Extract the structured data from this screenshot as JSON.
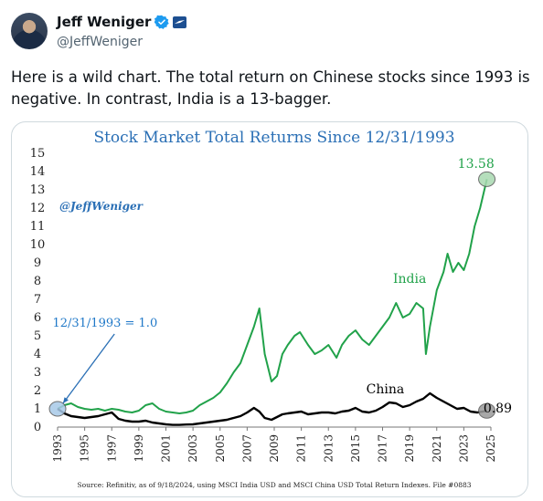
{
  "tweet": {
    "author_name": "Jeff Weniger",
    "author_handle": "@JeffWeniger",
    "text": "Here is a wild chart. The total return on Chinese stocks since 1993 is negative. In contrast, India is a 13-bagger.",
    "icons": [
      "avatar",
      "verified-badge-icon",
      "affiliate-badge-icon"
    ]
  },
  "chart_data": {
    "type": "line",
    "title": "Stock Market Total Returns Since 12/31/1993",
    "watermark": "@JeffWeniger",
    "source": "Source: Refinitiv, as of 9/18/2024, using MSCI India USD and MSCI China USD Total Return Indexes. File #0883",
    "xlabel": "",
    "ylabel": "",
    "xlim": [
      1993,
      2025
    ],
    "ylim": [
      0,
      15
    ],
    "x_ticks": [
      "1993",
      "1995",
      "1997",
      "1999",
      "2001",
      "2003",
      "2005",
      "2007",
      "2009",
      "2011",
      "2013",
      "2015",
      "2017",
      "2019",
      "2021",
      "2023",
      "2025"
    ],
    "y_ticks": [
      "0",
      "1",
      "2",
      "3",
      "4",
      "5",
      "6",
      "7",
      "8",
      "9",
      "10",
      "11",
      "12",
      "13",
      "14",
      "15"
    ],
    "grid": false,
    "series": [
      {
        "name": "India",
        "color": "#21a24a",
        "x": [
          1993.0,
          1993.5,
          1994.0,
          1994.5,
          1995.0,
          1995.5,
          1996.0,
          1996.5,
          1997.0,
          1997.5,
          1998.0,
          1998.5,
          1999.0,
          1999.5,
          2000.0,
          2000.5,
          2001.0,
          2001.5,
          2002.0,
          2002.5,
          2003.0,
          2003.5,
          2004.0,
          2004.5,
          2005.0,
          2005.5,
          2006.0,
          2006.5,
          2007.0,
          2007.5,
          2007.9,
          2008.3,
          2008.8,
          2009.2,
          2009.6,
          2010.0,
          2010.5,
          2010.9,
          2011.5,
          2012.0,
          2012.5,
          2013.0,
          2013.6,
          2014.0,
          2014.5,
          2015.0,
          2015.5,
          2016.0,
          2016.5,
          2017.0,
          2017.5,
          2018.0,
          2018.5,
          2019.0,
          2019.5,
          2020.0,
          2020.2,
          2020.5,
          2021.0,
          2021.5,
          2021.8,
          2022.2,
          2022.6,
          2023.0,
          2023.4,
          2023.8,
          2024.2,
          2024.7
        ],
        "values": [
          1.0,
          1.2,
          1.3,
          1.1,
          1.0,
          0.95,
          1.0,
          0.9,
          1.0,
          0.95,
          0.85,
          0.8,
          0.9,
          1.2,
          1.3,
          1.0,
          0.85,
          0.8,
          0.75,
          0.8,
          0.9,
          1.2,
          1.4,
          1.6,
          1.9,
          2.4,
          3.0,
          3.5,
          4.5,
          5.5,
          6.5,
          4.0,
          2.5,
          2.8,
          4.0,
          4.5,
          5.0,
          5.2,
          4.5,
          4.0,
          4.2,
          4.5,
          3.8,
          4.5,
          5.0,
          5.3,
          4.8,
          4.5,
          5.0,
          5.5,
          6.0,
          6.8,
          6.0,
          6.2,
          6.8,
          6.5,
          4.0,
          5.5,
          7.5,
          8.5,
          9.5,
          8.5,
          9.0,
          8.6,
          9.5,
          11.0,
          12.0,
          13.58
        ]
      },
      {
        "name": "China",
        "color": "#000000",
        "x": [
          1993.0,
          1993.5,
          1994.0,
          1994.5,
          1995.0,
          1995.5,
          1996.0,
          1996.5,
          1997.0,
          1997.5,
          1998.0,
          1998.5,
          1999.0,
          1999.5,
          2000.0,
          2000.5,
          2001.0,
          2001.5,
          2002.0,
          2002.5,
          2003.0,
          2003.5,
          2004.0,
          2004.5,
          2005.0,
          2005.5,
          2006.0,
          2006.5,
          2007.0,
          2007.5,
          2007.9,
          2008.3,
          2008.8,
          2009.2,
          2009.6,
          2010.0,
          2010.5,
          2011.0,
          2011.5,
          2012.0,
          2012.5,
          2013.0,
          2013.5,
          2014.0,
          2014.5,
          2015.0,
          2015.5,
          2016.0,
          2016.5,
          2017.0,
          2017.5,
          2018.0,
          2018.5,
          2019.0,
          2019.5,
          2020.0,
          2020.5,
          2021.0,
          2021.5,
          2022.0,
          2022.5,
          2023.0,
          2023.5,
          2024.0,
          2024.7
        ],
        "values": [
          1.0,
          0.75,
          0.6,
          0.55,
          0.5,
          0.55,
          0.6,
          0.7,
          0.8,
          0.45,
          0.35,
          0.3,
          0.3,
          0.35,
          0.25,
          0.2,
          0.15,
          0.12,
          0.12,
          0.14,
          0.15,
          0.2,
          0.25,
          0.3,
          0.35,
          0.4,
          0.5,
          0.6,
          0.8,
          1.05,
          0.85,
          0.5,
          0.4,
          0.55,
          0.7,
          0.75,
          0.8,
          0.85,
          0.7,
          0.75,
          0.8,
          0.8,
          0.75,
          0.85,
          0.9,
          1.05,
          0.85,
          0.8,
          0.9,
          1.1,
          1.35,
          1.3,
          1.1,
          1.2,
          1.4,
          1.55,
          1.85,
          1.6,
          1.4,
          1.2,
          1.0,
          1.05,
          0.85,
          0.8,
          0.89
        ]
      }
    ],
    "annotations": [
      {
        "text": "India",
        "x": 2019.0,
        "y": 7.9,
        "color": "#21a24a"
      },
      {
        "text": "China",
        "x": 2017.2,
        "y": 1.85,
        "color": "#000000"
      },
      {
        "text": "13.58",
        "x": 2023.9,
        "y": 14.2,
        "color": "#21a24a"
      },
      {
        "text": "0.89",
        "x": 2025.5,
        "y": 0.8,
        "color": "#000000"
      },
      {
        "text": "12/31/1993 = 1.0",
        "x": 1996.5,
        "y": 5.5,
        "color": "#1f78c8"
      }
    ]
  }
}
